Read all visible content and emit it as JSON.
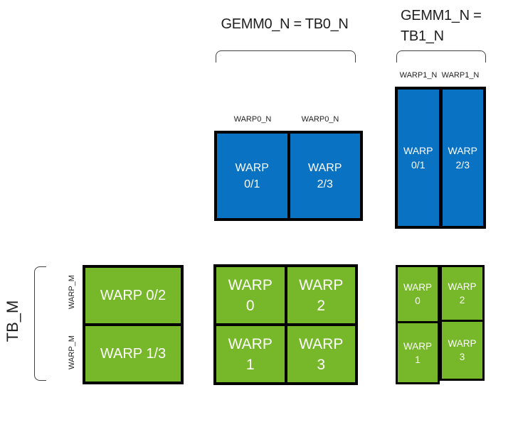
{
  "diagram": {
    "header": {
      "gemm0": "GEMM0_N = TB0_N",
      "gemm1_line1": "GEMM1_N =",
      "gemm1_line2": "TB1_N"
    },
    "side": {
      "tb_m": "TB_M",
      "warp_m_row0": "WARP_M",
      "warp_m_row1": "WARP_M"
    },
    "column_labels": {
      "gemm0_col0": "WARP0_N",
      "gemm0_col1": "WARP0_N",
      "gemm1_col0": "WARP1_N",
      "gemm1_col1": "WARP1_N"
    },
    "blocks": {
      "top_center": {
        "cells": [
          {
            "line1": "WARP",
            "line2": "0/1"
          },
          {
            "line1": "WARP",
            "line2": "2/3"
          }
        ]
      },
      "top_right": {
        "cells": [
          {
            "line1": "WARP",
            "line2": "0/1"
          },
          {
            "line1": "WARP",
            "line2": "2/3"
          }
        ]
      },
      "bottom_left": {
        "rows": [
          {
            "label": "WARP 0/2"
          },
          {
            "label": "WARP 1/3"
          }
        ]
      },
      "bottom_center": {
        "cells": [
          {
            "line1": "WARP",
            "line2": "0"
          },
          {
            "line1": "WARP",
            "line2": "2"
          },
          {
            "line1": "WARP",
            "line2": "1"
          },
          {
            "line1": "WARP",
            "line2": "3"
          }
        ]
      },
      "bottom_right": {
        "cells": [
          {
            "line1": "WARP",
            "line2": "0"
          },
          {
            "line1": "WARP",
            "line2": "2"
          },
          {
            "line1": "WARP",
            "line2": "1"
          },
          {
            "line1": "WARP",
            "line2": "3"
          }
        ]
      }
    },
    "colors": {
      "blue": "#0a72c2",
      "green": "#76b829",
      "border": "#000000",
      "cell_text": "#ffffff",
      "label_text": "#1f1f1f",
      "bracket": "#404040"
    }
  }
}
